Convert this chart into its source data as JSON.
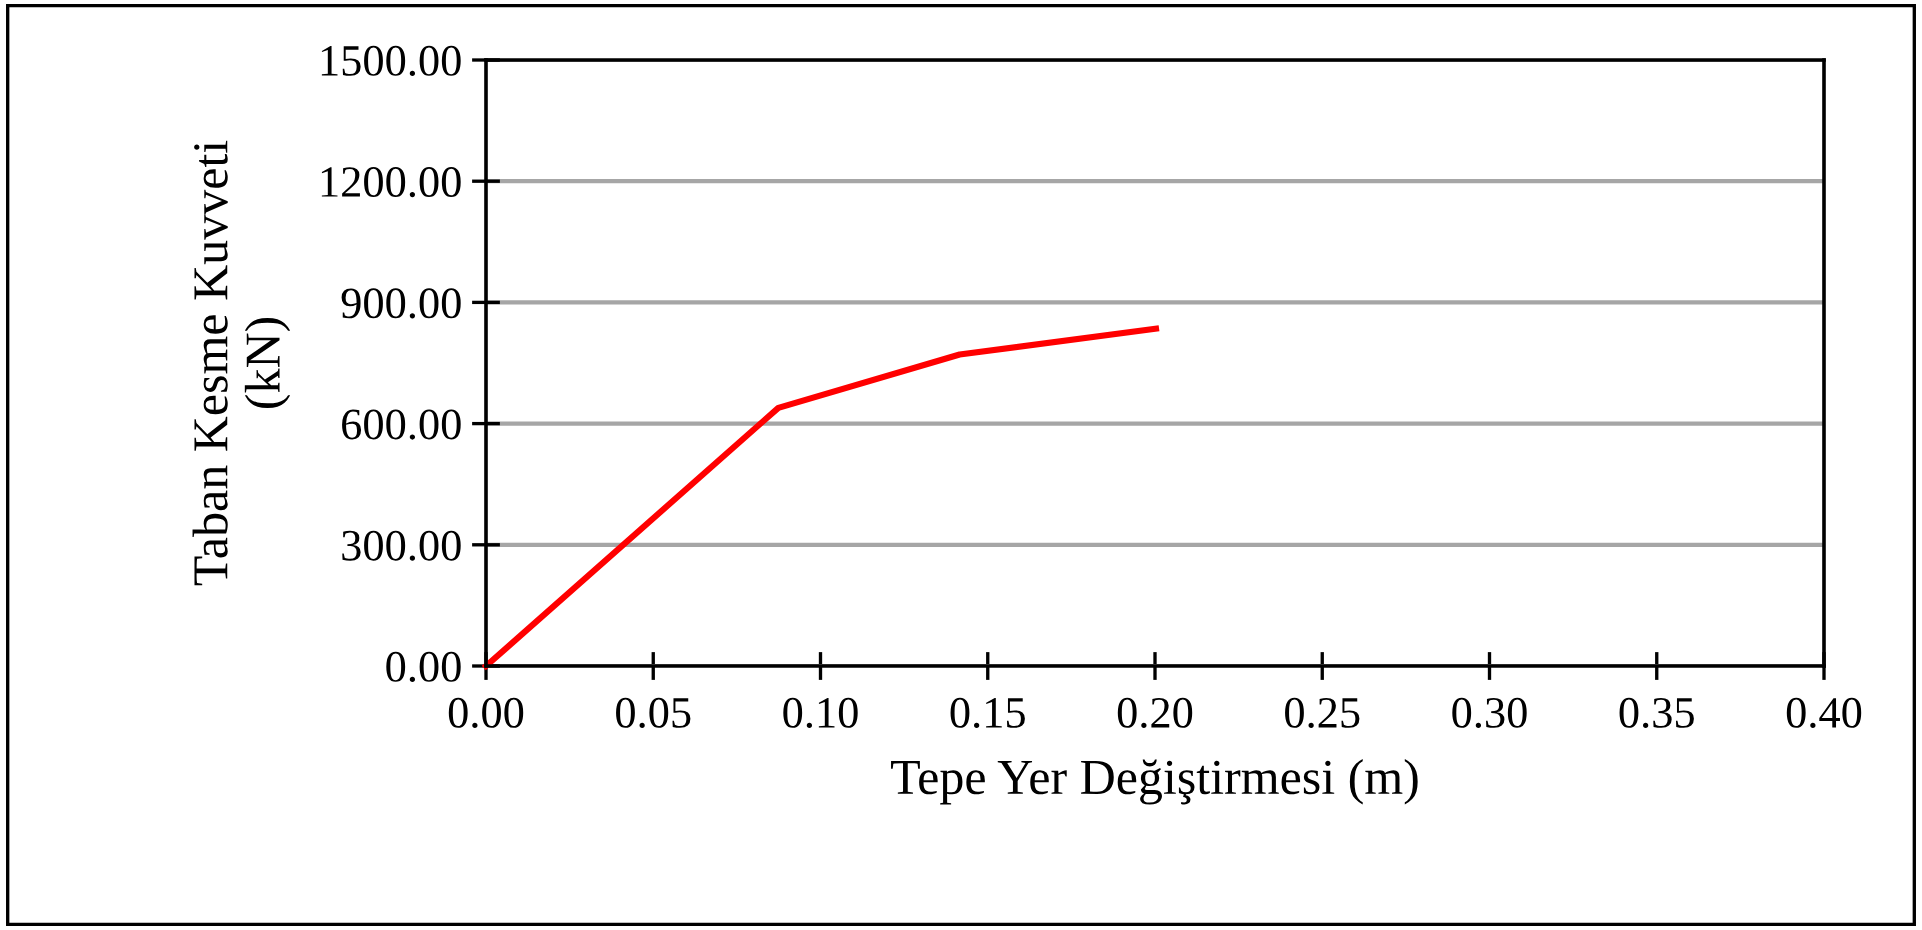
{
  "chart_data": {
    "type": "line",
    "xlabel": "Tepe Yer Değiştirmesi (m)",
    "ylabel": "Taban Kesme Kuvveti\n(kN)",
    "series": [
      {
        "color": "#ff0000",
        "x": [
          0,
          0.0874,
          0.1416,
          0.2003
        ],
        "values": [
          0,
          639,
          771,
          835
        ]
      }
    ],
    "xlim": [
      0,
      0.4
    ],
    "xticks": [
      {
        "value": 0,
        "label": "0.00"
      },
      {
        "value": 0.05,
        "label": "0.05"
      },
      {
        "value": 0.1,
        "label": "0.10"
      },
      {
        "value": 0.15,
        "label": "0.15"
      },
      {
        "value": 0.2,
        "label": "0.20"
      },
      {
        "value": 0.25,
        "label": "0.25"
      },
      {
        "value": 0.3,
        "label": "0.30"
      },
      {
        "value": 0.35,
        "label": "0.35"
      },
      {
        "value": 0.4,
        "label": "0.40"
      }
    ],
    "ylim": [
      0,
      1500
    ],
    "yticks": [
      {
        "value": 0,
        "label": "0.00"
      },
      {
        "value": 300,
        "label": "300.00"
      },
      {
        "value": 600,
        "label": "600.00"
      },
      {
        "value": 900,
        "label": "900.00"
      },
      {
        "value": 1200,
        "label": "1200.00"
      },
      {
        "value": 1500,
        "label": "1500.00"
      }
    ],
    "grid": "y",
    "marker": "none",
    "line_style": "solid"
  }
}
